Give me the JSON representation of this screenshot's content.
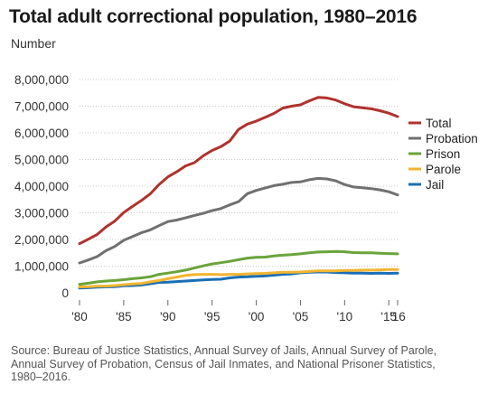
{
  "title": "Total adult correctional population, 1980–2016",
  "ylabel": "Number",
  "source": "Source: Bureau of Justice Statistics, Annual Survey of Jails, Annual Survey of Parole, Annual Survey of Probation, Census of Jail Inmates, and National Prisoner Statistics, 1980–2016.",
  "chart_data": {
    "type": "line",
    "title": "Total adult correctional population, 1980–2016",
    "ylabel": "Number",
    "xlabel": "",
    "x": [
      1980,
      1981,
      1982,
      1983,
      1984,
      1985,
      1986,
      1987,
      1988,
      1989,
      1990,
      1991,
      1992,
      1993,
      1994,
      1995,
      1996,
      1997,
      1998,
      1999,
      2000,
      2001,
      2002,
      2003,
      2004,
      2005,
      2006,
      2007,
      2008,
      2009,
      2010,
      2011,
      2012,
      2013,
      2014,
      2015,
      2016
    ],
    "xlim": [
      1980,
      2016
    ],
    "ylim": [
      0,
      8000000
    ],
    "yticks": [
      0,
      1000000,
      2000000,
      3000000,
      4000000,
      5000000,
      6000000,
      7000000,
      8000000
    ],
    "ytick_labels": [
      "0",
      "1,000,000",
      "2,000,000",
      "3,000,000",
      "4,000,000",
      "5,000,000",
      "6,000,000",
      "7,000,000",
      "8,000,000"
    ],
    "xticks": [
      1980,
      1985,
      1990,
      1995,
      2000,
      2005,
      2010,
      2015,
      2016
    ],
    "xtick_labels": [
      "'80",
      "'85",
      "'90",
      "'95",
      "'00",
      "'05",
      "'10",
      "'15",
      "'16"
    ],
    "grid": "horizontal dotted",
    "legend": "right",
    "series": [
      {
        "name": "Total",
        "color": "#b0322d",
        "values": [
          1840000,
          2010000,
          2190000,
          2470000,
          2690000,
          3010000,
          3240000,
          3460000,
          3710000,
          4060000,
          4350000,
          4540000,
          4760000,
          4880000,
          5140000,
          5340000,
          5480000,
          5690000,
          6130000,
          6330000,
          6440000,
          6580000,
          6730000,
          6930000,
          7000000,
          7050000,
          7200000,
          7330000,
          7310000,
          7230000,
          7090000,
          6980000,
          6940000,
          6900000,
          6830000,
          6740000,
          6610000
        ]
      },
      {
        "name": "Probation",
        "color": "#707070",
        "values": [
          1120000,
          1230000,
          1360000,
          1580000,
          1740000,
          1970000,
          2110000,
          2250000,
          2360000,
          2520000,
          2670000,
          2730000,
          2810000,
          2900000,
          2980000,
          3080000,
          3160000,
          3300000,
          3420000,
          3720000,
          3840000,
          3930000,
          4020000,
          4070000,
          4140000,
          4160000,
          4240000,
          4290000,
          4270000,
          4200000,
          4060000,
          3970000,
          3940000,
          3910000,
          3860000,
          3790000,
          3670000
        ]
      },
      {
        "name": "Prison",
        "color": "#6aa43a",
        "values": [
          320000,
          360000,
          410000,
          440000,
          460000,
          490000,
          530000,
          560000,
          600000,
          690000,
          740000,
          790000,
          850000,
          930000,
          1010000,
          1080000,
          1130000,
          1180000,
          1240000,
          1300000,
          1330000,
          1340000,
          1380000,
          1410000,
          1430000,
          1460000,
          1500000,
          1530000,
          1540000,
          1550000,
          1540000,
          1510000,
          1500000,
          1500000,
          1480000,
          1470000,
          1460000
        ]
      },
      {
        "name": "Parole",
        "color": "#f2b530",
        "values": [
          220000,
          230000,
          250000,
          250000,
          270000,
          300000,
          330000,
          350000,
          410000,
          460000,
          530000,
          590000,
          650000,
          680000,
          690000,
          690000,
          680000,
          690000,
          690000,
          710000,
          720000,
          730000,
          750000,
          770000,
          770000,
          780000,
          800000,
          820000,
          820000,
          820000,
          840000,
          840000,
          850000,
          850000,
          860000,
          870000,
          870000
        ]
      },
      {
        "name": "Jail",
        "color": "#1a6fb5",
        "values": [
          180000,
          190000,
          210000,
          220000,
          230000,
          260000,
          270000,
          290000,
          340000,
          390000,
          400000,
          420000,
          440000,
          460000,
          480000,
          500000,
          510000,
          560000,
          590000,
          600000,
          620000,
          630000,
          660000,
          690000,
          710000,
          750000,
          770000,
          780000,
          780000,
          760000,
          750000,
          740000,
          740000,
          730000,
          740000,
          730000,
          740000
        ]
      }
    ]
  }
}
